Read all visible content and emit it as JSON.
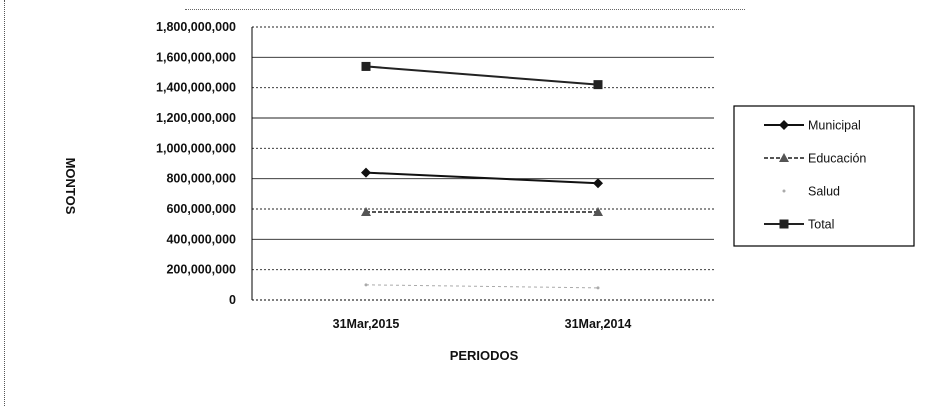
{
  "chart_data": {
    "type": "line",
    "title": "",
    "xlabel": "PERIODOS",
    "ylabel": "MONTOS",
    "categories": [
      "31Mar,2015",
      "31Mar,2014"
    ],
    "ylim": [
      0,
      1800000000
    ],
    "y_ticks": [
      0,
      200000000,
      400000000,
      600000000,
      800000000,
      1000000000,
      1200000000,
      1400000000,
      1600000000,
      1800000000
    ],
    "y_tick_labels": [
      "0",
      "200,000,000",
      "400,000,000",
      "600,000,000",
      "800,000,000",
      "1,000,000,000",
      "1,200,000,000",
      "1,400,000,000",
      "1,600,000,000",
      "1,800,000,000"
    ],
    "grid": true,
    "legend_position": "right",
    "series": [
      {
        "name": "Municipal",
        "values": [
          840000000,
          770000000
        ],
        "color": "#111111",
        "marker": "diamond"
      },
      {
        "name": "Educación",
        "values": [
          580000000,
          580000000
        ],
        "color": "#555555",
        "marker": "triangle"
      },
      {
        "name": "Salud",
        "values": [
          100000000,
          80000000
        ],
        "color": "#aaaaaa",
        "marker": "none"
      },
      {
        "name": "Total",
        "values": [
          1540000000,
          1420000000
        ],
        "color": "#222222",
        "marker": "square"
      }
    ]
  }
}
